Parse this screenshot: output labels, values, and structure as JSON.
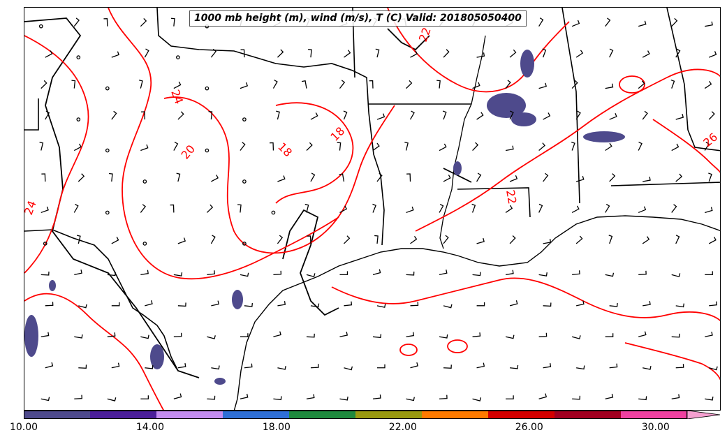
{
  "title": "1000 mb height (m), wind (m/s), T (C) Valid: 201805050400",
  "contour_labels": [
    "24",
    "20",
    "18",
    "18",
    "22",
    "22",
    "26",
    "24"
  ],
  "colorbar": {
    "colors": [
      "#4e4a8c",
      "#4b1e9a",
      "#c38cf0",
      "#2f6fd6",
      "#1f8a3e",
      "#9a9a10",
      "#ff7a00",
      "#d40000",
      "#a00020",
      "#f040a0"
    ],
    "extend_color": "#f5a0d0",
    "tick_labels": [
      "10.00",
      "14.00",
      "18.00",
      "22.00",
      "26.00",
      "30.00"
    ],
    "tick_values": [
      10,
      14,
      18,
      22,
      26,
      30
    ],
    "range": [
      10,
      31
    ]
  },
  "colors": {
    "temperature_contour": "#ff0000",
    "height_contour": "#000000",
    "coastline": "#000000"
  }
}
